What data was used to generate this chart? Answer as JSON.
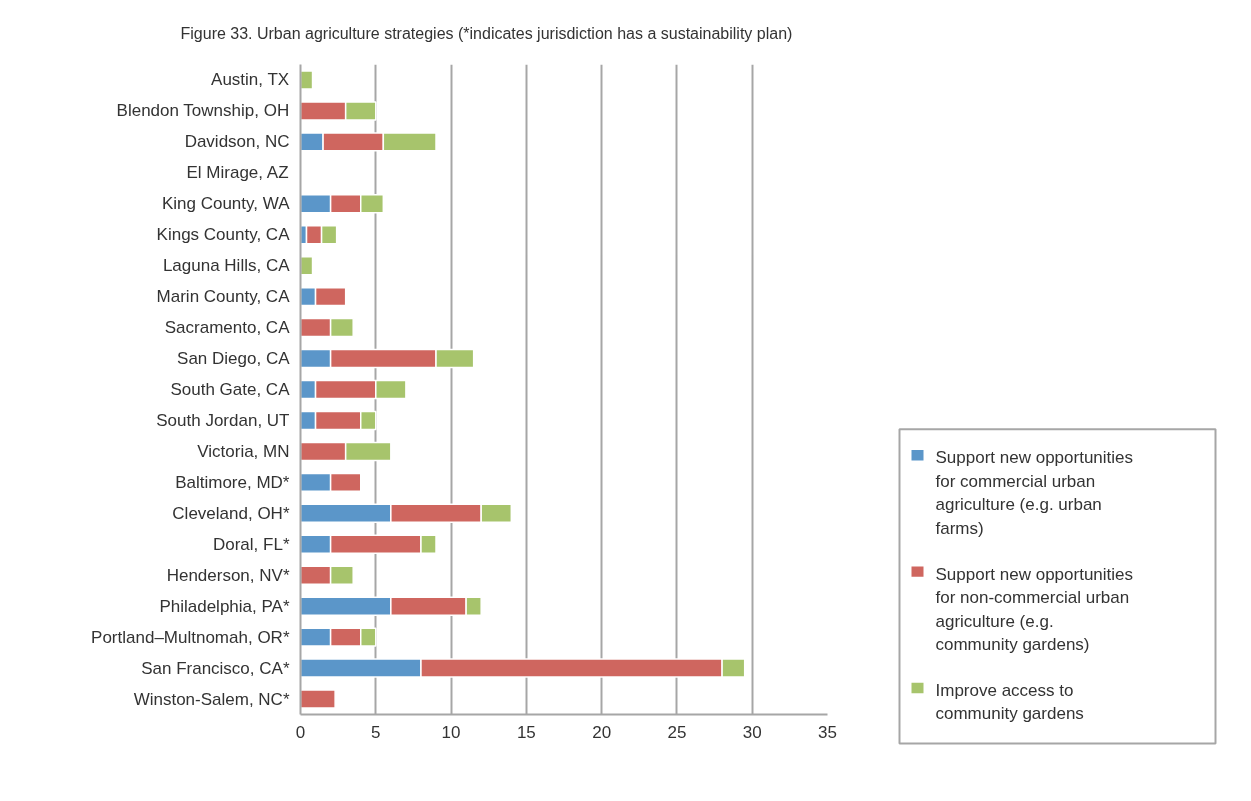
{
  "chart_data": {
    "type": "bar",
    "orientation": "horizontal",
    "stacked": true,
    "title": "Figure 33. Urban agriculture strategies (*indicates jurisdiction has a sustainability plan)",
    "categories": [
      "Austin, TX",
      "Blendon Township, OH",
      "Davidson, NC",
      "El Mirage, AZ",
      "King County, WA",
      "Kings County, CA",
      "Laguna Hills, CA",
      "Marin County, CA",
      "Sacramento, CA",
      "San Diego, CA",
      "South Gate, CA",
      "South Jordan, UT",
      "Victoria, MN",
      "Baltimore, MD*",
      "Cleveland, OH*",
      "Doral, FL*",
      "Henderson, NV*",
      "Philadelphia, PA*",
      "Portland–Multnomah, OR*",
      "San Francisco, CA*",
      "Winston-Salem, NC*"
    ],
    "series": [
      {
        "name": "Support new opportunities for commercial urban agriculture (e.g. urban farms)",
        "color": "#5b96c9",
        "values": [
          null,
          null,
          1.5,
          null,
          2,
          0.4,
          null,
          1,
          null,
          2,
          1,
          1,
          null,
          2,
          6,
          2,
          null,
          6,
          2,
          8,
          null
        ]
      },
      {
        "name": "Support new opportunities for non-commercial urban agriculture (e.g. community gardens)",
        "color": "#cf665f",
        "values": [
          null,
          3,
          4,
          null,
          2,
          1,
          null,
          2,
          2,
          7,
          4,
          3,
          3,
          2,
          6,
          6,
          2,
          5,
          2,
          20,
          2.3
        ]
      },
      {
        "name": "Improve access to community gardens",
        "color": "#a7c46c",
        "values": [
          0.8,
          2,
          3.5,
          null,
          1.5,
          1,
          0.8,
          null,
          1.5,
          2.5,
          2,
          1,
          3,
          null,
          2,
          1,
          1.5,
          1,
          1,
          1.5,
          null
        ]
      }
    ],
    "xlim": [
      0,
      35
    ],
    "xticks": [
      0,
      5,
      10,
      15,
      20,
      25,
      30,
      35
    ],
    "grid": "x",
    "legend": "right"
  }
}
